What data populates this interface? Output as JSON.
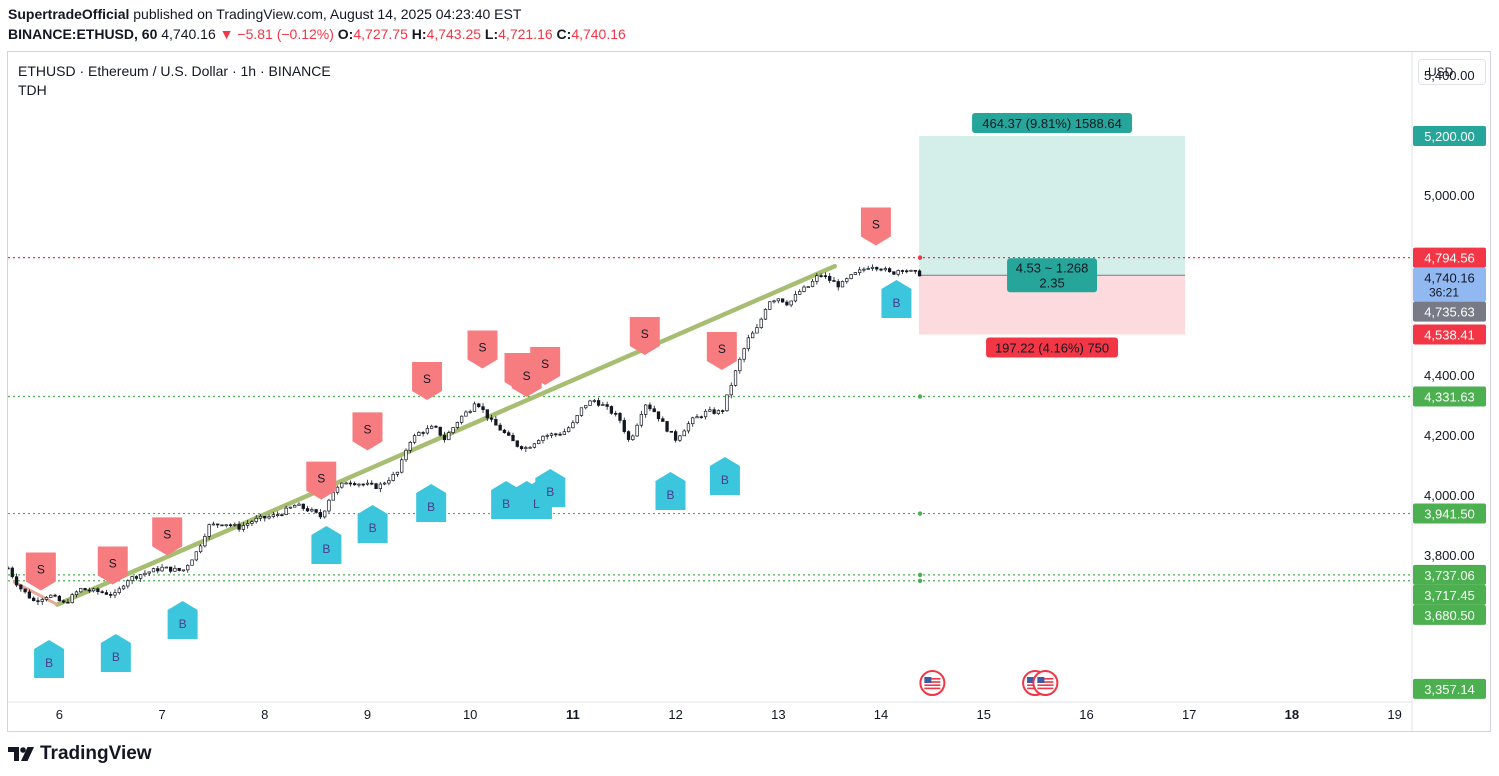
{
  "header": {
    "publisher": "SupertradeOfficial",
    "published_text": "published on TradingView.com, August 14, 2025 04:23:40 EST",
    "symbol_line": "BINANCE:ETHUSD, 60",
    "last": "4,740.16",
    "change": "−5.81 (−0.12%)",
    "o_label": "O:",
    "o": "4,727.75",
    "h_label": "H:",
    "h": "4,743.25",
    "l_label": "L:",
    "l": "4,721.16",
    "c_label": "C:",
    "c": "4,740.16"
  },
  "legend": {
    "title": "ETHUSD · Ethereum / U.S. Dollar · 1h · BINANCE",
    "indicator": "TDH"
  },
  "currency": "USD",
  "brand": "TradingView",
  "colors": {
    "up": "#131722",
    "down": "#131722",
    "trend": "#a6bd72",
    "sell": "#f77c80",
    "buy": "#3cc6dd",
    "profit": "#d4efea",
    "loss": "#fcdadd",
    "green": "#4caf50",
    "red": "#f23645",
    "teal": "#26a69a"
  },
  "chart_data": {
    "type": "candlestick",
    "ylim": [
      3320,
      5480
    ],
    "xlim": [
      5.5,
      19.15
    ],
    "y_ticks": [
      {
        "v": 5400,
        "label": "5,400.00"
      },
      {
        "v": 5000,
        "label": "5,000.00"
      },
      {
        "v": 4400,
        "label": "4,400.00"
      },
      {
        "v": 4200,
        "label": "4,200.00"
      },
      {
        "v": 4000,
        "label": "4,000.00"
      },
      {
        "v": 3800,
        "label": "3,800.00"
      }
    ],
    "x_ticks": [
      {
        "v": 6,
        "label": "6"
      },
      {
        "v": 7,
        "label": "7"
      },
      {
        "v": 8,
        "label": "8"
      },
      {
        "v": 9,
        "label": "9"
      },
      {
        "v": 10,
        "label": "10"
      },
      {
        "v": 11,
        "label": "11",
        "bold": true
      },
      {
        "v": 12,
        "label": "12"
      },
      {
        "v": 13,
        "label": "13"
      },
      {
        "v": 14,
        "label": "14"
      },
      {
        "v": 15,
        "label": "15"
      },
      {
        "v": 16,
        "label": "16"
      },
      {
        "v": 17,
        "label": "17"
      },
      {
        "v": 18,
        "label": "18",
        "bold": true
      },
      {
        "v": 19,
        "label": "19"
      }
    ],
    "price_path": [
      [
        5.5,
        3760
      ],
      [
        5.6,
        3700
      ],
      [
        5.75,
        3650
      ],
      [
        5.9,
        3670
      ],
      [
        6.05,
        3640
      ],
      [
        6.2,
        3690
      ],
      [
        6.4,
        3680
      ],
      [
        6.55,
        3670
      ],
      [
        6.65,
        3720
      ],
      [
        6.8,
        3740
      ],
      [
        7.0,
        3760
      ],
      [
        7.2,
        3750
      ],
      [
        7.35,
        3820
      ],
      [
        7.45,
        3900
      ],
      [
        7.6,
        3910
      ],
      [
        7.75,
        3895
      ],
      [
        7.9,
        3920
      ],
      [
        8.1,
        3935
      ],
      [
        8.2,
        3950
      ],
      [
        8.3,
        3970
      ],
      [
        8.45,
        3950
      ],
      [
        8.55,
        3930
      ],
      [
        8.65,
        4010
      ],
      [
        8.8,
        4050
      ],
      [
        8.95,
        4040
      ],
      [
        9.1,
        4030
      ],
      [
        9.3,
        4080
      ],
      [
        9.4,
        4180
      ],
      [
        9.5,
        4210
      ],
      [
        9.65,
        4230
      ],
      [
        9.75,
        4190
      ],
      [
        9.9,
        4260
      ],
      [
        10.0,
        4290
      ],
      [
        10.05,
        4320
      ],
      [
        10.2,
        4250
      ],
      [
        10.3,
        4220
      ],
      [
        10.45,
        4170
      ],
      [
        10.55,
        4160
      ],
      [
        10.7,
        4200
      ],
      [
        10.9,
        4210
      ],
      [
        11.0,
        4240
      ],
      [
        11.1,
        4300
      ],
      [
        11.2,
        4320
      ],
      [
        11.3,
        4300
      ],
      [
        11.45,
        4260
      ],
      [
        11.55,
        4180
      ],
      [
        11.6,
        4220
      ],
      [
        11.7,
        4310
      ],
      [
        11.8,
        4280
      ],
      [
        11.9,
        4230
      ],
      [
        12.0,
        4190
      ],
      [
        12.15,
        4250
      ],
      [
        12.3,
        4280
      ],
      [
        12.45,
        4280
      ],
      [
        12.5,
        4330
      ],
      [
        12.6,
        4430
      ],
      [
        12.7,
        4520
      ],
      [
        12.8,
        4560
      ],
      [
        12.9,
        4650
      ],
      [
        13.0,
        4660
      ],
      [
        13.1,
        4640
      ],
      [
        13.2,
        4680
      ],
      [
        13.3,
        4700
      ],
      [
        13.4,
        4740
      ],
      [
        13.5,
        4720
      ],
      [
        13.6,
        4700
      ],
      [
        13.7,
        4730
      ],
      [
        13.8,
        4750
      ],
      [
        13.9,
        4770
      ],
      [
        14.0,
        4760
      ],
      [
        14.1,
        4740
      ],
      [
        14.2,
        4760
      ],
      [
        14.3,
        4745
      ],
      [
        14.38,
        4740
      ]
    ],
    "trend_line": {
      "from": [
        5.98,
        3638
      ],
      "to": [
        13.55,
        4766
      ]
    },
    "sell_signals": [
      [
        5.82,
        3755
      ],
      [
        6.52,
        3775
      ],
      [
        7.05,
        3872
      ],
      [
        8.55,
        4058
      ],
      [
        9.0,
        4222
      ],
      [
        9.58,
        4390
      ],
      [
        10.12,
        4495
      ],
      [
        10.48,
        4420
      ],
      [
        10.55,
        4400
      ],
      [
        10.73,
        4440
      ],
      [
        11.7,
        4540
      ],
      [
        12.45,
        4490
      ],
      [
        13.95,
        4905
      ]
    ],
    "buy_signals": [
      [
        5.9,
        3450
      ],
      [
        6.55,
        3470
      ],
      [
        7.2,
        3580
      ],
      [
        8.6,
        3830
      ],
      [
        9.05,
        3900
      ],
      [
        9.62,
        3970
      ],
      [
        10.35,
        3980
      ],
      [
        10.55,
        3980
      ],
      [
        10.65,
        3980
      ],
      [
        10.78,
        4020
      ],
      [
        11.95,
        4010
      ],
      [
        12.48,
        4060
      ],
      [
        14.15,
        4650
      ]
    ],
    "levels": [
      {
        "v": 4794.56,
        "label": "4,794.56",
        "style": "dotted-red"
      },
      {
        "v": 4331.63,
        "label": "4,331.63",
        "style": "dotted-green"
      },
      {
        "v": 3941.5,
        "label": "3,941.50",
        "style": "dotted-green"
      },
      {
        "v": 3737.06,
        "label": "3,737.06",
        "style": "dotted-green"
      },
      {
        "v": 3717.45,
        "label": "3,717.45",
        "style": "dotted-green"
      }
    ],
    "axis_tags": [
      {
        "v": 5200,
        "label": "5,200.00",
        "color": "#26a69a"
      },
      {
        "v": 4794.56,
        "label": "4,794.56",
        "color": "#f23645"
      },
      {
        "v": 4740.16,
        "label": "4,740.16",
        "sub": "36:21",
        "color": "#92b8f2"
      },
      {
        "v": 4735.63,
        "label": "4,735.63",
        "color": "#787b86"
      },
      {
        "v": 4538.41,
        "label": "4,538.41",
        "color": "#f23645"
      },
      {
        "v": 4331.63,
        "label": "4,331.63",
        "color": "#4caf50"
      },
      {
        "v": 3941.5,
        "label": "3,941.50",
        "color": "#4caf50"
      },
      {
        "v": 3737.06,
        "label": "3,737.06",
        "color": "#4caf50"
      },
      {
        "v": 3717.45,
        "label": "3,717.45",
        "color": "#4caf50"
      },
      {
        "v": 3680.5,
        "label": "3,680.50",
        "color": "#4caf50"
      },
      {
        "v": 3357.14,
        "label": "3,357.14",
        "color": "#4caf50"
      }
    ],
    "position": {
      "x_start": 14.37,
      "x_end": 16.96,
      "entry": 4735.63,
      "target": 5200.0,
      "stop": 4538.41,
      "target_label": "464.37 (9.81%) 1588.64",
      "stop_label": "197.22 (4.16%) 750",
      "ratio_line1": "4.53 ~ 1.268",
      "ratio_line2": "2.35"
    },
    "events": [
      14.5,
      15.5,
      15.6
    ]
  }
}
